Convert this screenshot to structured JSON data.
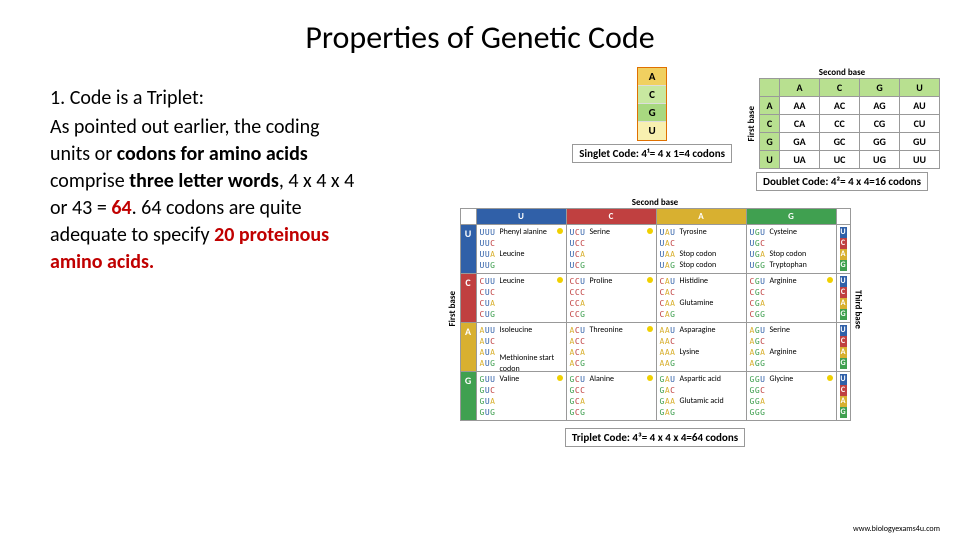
{
  "title": "Properties of Genetic Code",
  "left_text": {
    "heading": "1.  Code is a Triplet:",
    "p1a": "As pointed out earlier, the coding units or ",
    "p1b": "codons for amino acids",
    "p1c": " comprise ",
    "p1d": "three letter words",
    "p1e": ", 4 x 4 x 4 or 43 = ",
    "p1f": "64",
    "p1g": ". 64 codons are quite adequate to specify ",
    "p1h": "20 proteinous amino acids."
  },
  "labels": {
    "first_base": "First base",
    "second_base": "Second base",
    "third_base": "Third base",
    "singlet_caption": "Singlet Code: 4¹= 4 x 1=4 codons",
    "doublet_caption": "Doublet Code: 4²= 4 x 4=16 codons",
    "triplet_caption": "Triplet Code: 4³= 4 x 4 x 4=64 codons",
    "attribution": "www.biologyexams4u.com"
  },
  "singlet": {
    "bases": [
      "A",
      "C",
      "G",
      "U"
    ],
    "colors": [
      "#f0d060",
      "#c8e8a0",
      "#a8d880",
      "#f8f0b0"
    ]
  },
  "doublet": {
    "col_head": [
      "A",
      "C",
      "G",
      "U"
    ],
    "rows": [
      {
        "h": "A",
        "cells": [
          "AA",
          "AC",
          "AG",
          "AU"
        ]
      },
      {
        "h": "C",
        "cells": [
          "CA",
          "CC",
          "CG",
          "CU"
        ]
      },
      {
        "h": "G",
        "cells": [
          "GA",
          "GC",
          "GG",
          "GU"
        ]
      },
      {
        "h": "U",
        "cells": [
          "UA",
          "UC",
          "UG",
          "UU"
        ]
      }
    ]
  },
  "triplet": {
    "cols": [
      "U",
      "C",
      "A",
      "G"
    ],
    "col_colors": [
      "#3060a8",
      "#c04040",
      "#d8b030",
      "#40a050"
    ],
    "rows": [
      {
        "h": "U",
        "color": "#3060a8",
        "cells": [
          {
            "codons": [
              "UUU",
              "UUC",
              "UUA",
              "UUG"
            ],
            "aa": [
              "Phenyl alanine",
              "",
              "Leucine",
              ""
            ],
            "dot": true
          },
          {
            "codons": [
              "UCU",
              "UCC",
              "UCA",
              "UCG"
            ],
            "aa": [
              "Serine",
              "",
              "",
              ""
            ],
            "dot": true
          },
          {
            "codons": [
              "UAU",
              "UAC",
              "UAA",
              "UAG"
            ],
            "aa": [
              "Tyrosine",
              "",
              "Stop codon",
              "Stop codon"
            ],
            "dot": false
          },
          {
            "codons": [
              "UGU",
              "UGC",
              "UGA",
              "UGG"
            ],
            "aa": [
              "Cysteine",
              "",
              "Stop codon",
              "Tryptophan"
            ],
            "dot": false
          }
        ]
      },
      {
        "h": "C",
        "color": "#c04040",
        "cells": [
          {
            "codons": [
              "CUU",
              "CUC",
              "CUA",
              "CUG"
            ],
            "aa": [
              "Leucine",
              "",
              "",
              ""
            ],
            "dot": true
          },
          {
            "codons": [
              "CCU",
              "CCC",
              "CCA",
              "CCG"
            ],
            "aa": [
              "Proline",
              "",
              "",
              ""
            ],
            "dot": true
          },
          {
            "codons": [
              "CAU",
              "CAC",
              "CAA",
              "CAG"
            ],
            "aa": [
              "Histidine",
              "",
              "Glutamine",
              ""
            ],
            "dot": false
          },
          {
            "codons": [
              "CGU",
              "CGC",
              "CGA",
              "CGG"
            ],
            "aa": [
              "Arginine",
              "",
              "",
              ""
            ],
            "dot": true
          }
        ]
      },
      {
        "h": "A",
        "color": "#d8b030",
        "cells": [
          {
            "codons": [
              "AUU",
              "AUC",
              "AUA",
              "AUG"
            ],
            "aa": [
              "Isoleucine",
              "",
              "",
              "Methionine start codon"
            ],
            "dot": false
          },
          {
            "codons": [
              "ACU",
              "ACC",
              "ACA",
              "ACG"
            ],
            "aa": [
              "Threonine",
              "",
              "",
              ""
            ],
            "dot": true
          },
          {
            "codons": [
              "AAU",
              "AAC",
              "AAA",
              "AAG"
            ],
            "aa": [
              "Asparagine",
              "",
              "Lysine",
              ""
            ],
            "dot": false
          },
          {
            "codons": [
              "AGU",
              "AGC",
              "AGA",
              "AGG"
            ],
            "aa": [
              "Serine",
              "",
              "Arginine",
              ""
            ],
            "dot": false
          }
        ]
      },
      {
        "h": "G",
        "color": "#40a050",
        "cells": [
          {
            "codons": [
              "GUU",
              "GUC",
              "GUA",
              "GUG"
            ],
            "aa": [
              "Valine",
              "",
              "",
              ""
            ],
            "dot": true
          },
          {
            "codons": [
              "GCU",
              "GCC",
              "GCA",
              "GCG"
            ],
            "aa": [
              "Alanine",
              "",
              "",
              ""
            ],
            "dot": true
          },
          {
            "codons": [
              "GAU",
              "GAC",
              "GAA",
              "GAG"
            ],
            "aa": [
              "Aspartic acid",
              "",
              "Glutamic acid",
              ""
            ],
            "dot": false
          },
          {
            "codons": [
              "GGU",
              "GGC",
              "GGA",
              "GGG"
            ],
            "aa": [
              "Glycine",
              "",
              "",
              ""
            ],
            "dot": true
          }
        ]
      }
    ]
  }
}
